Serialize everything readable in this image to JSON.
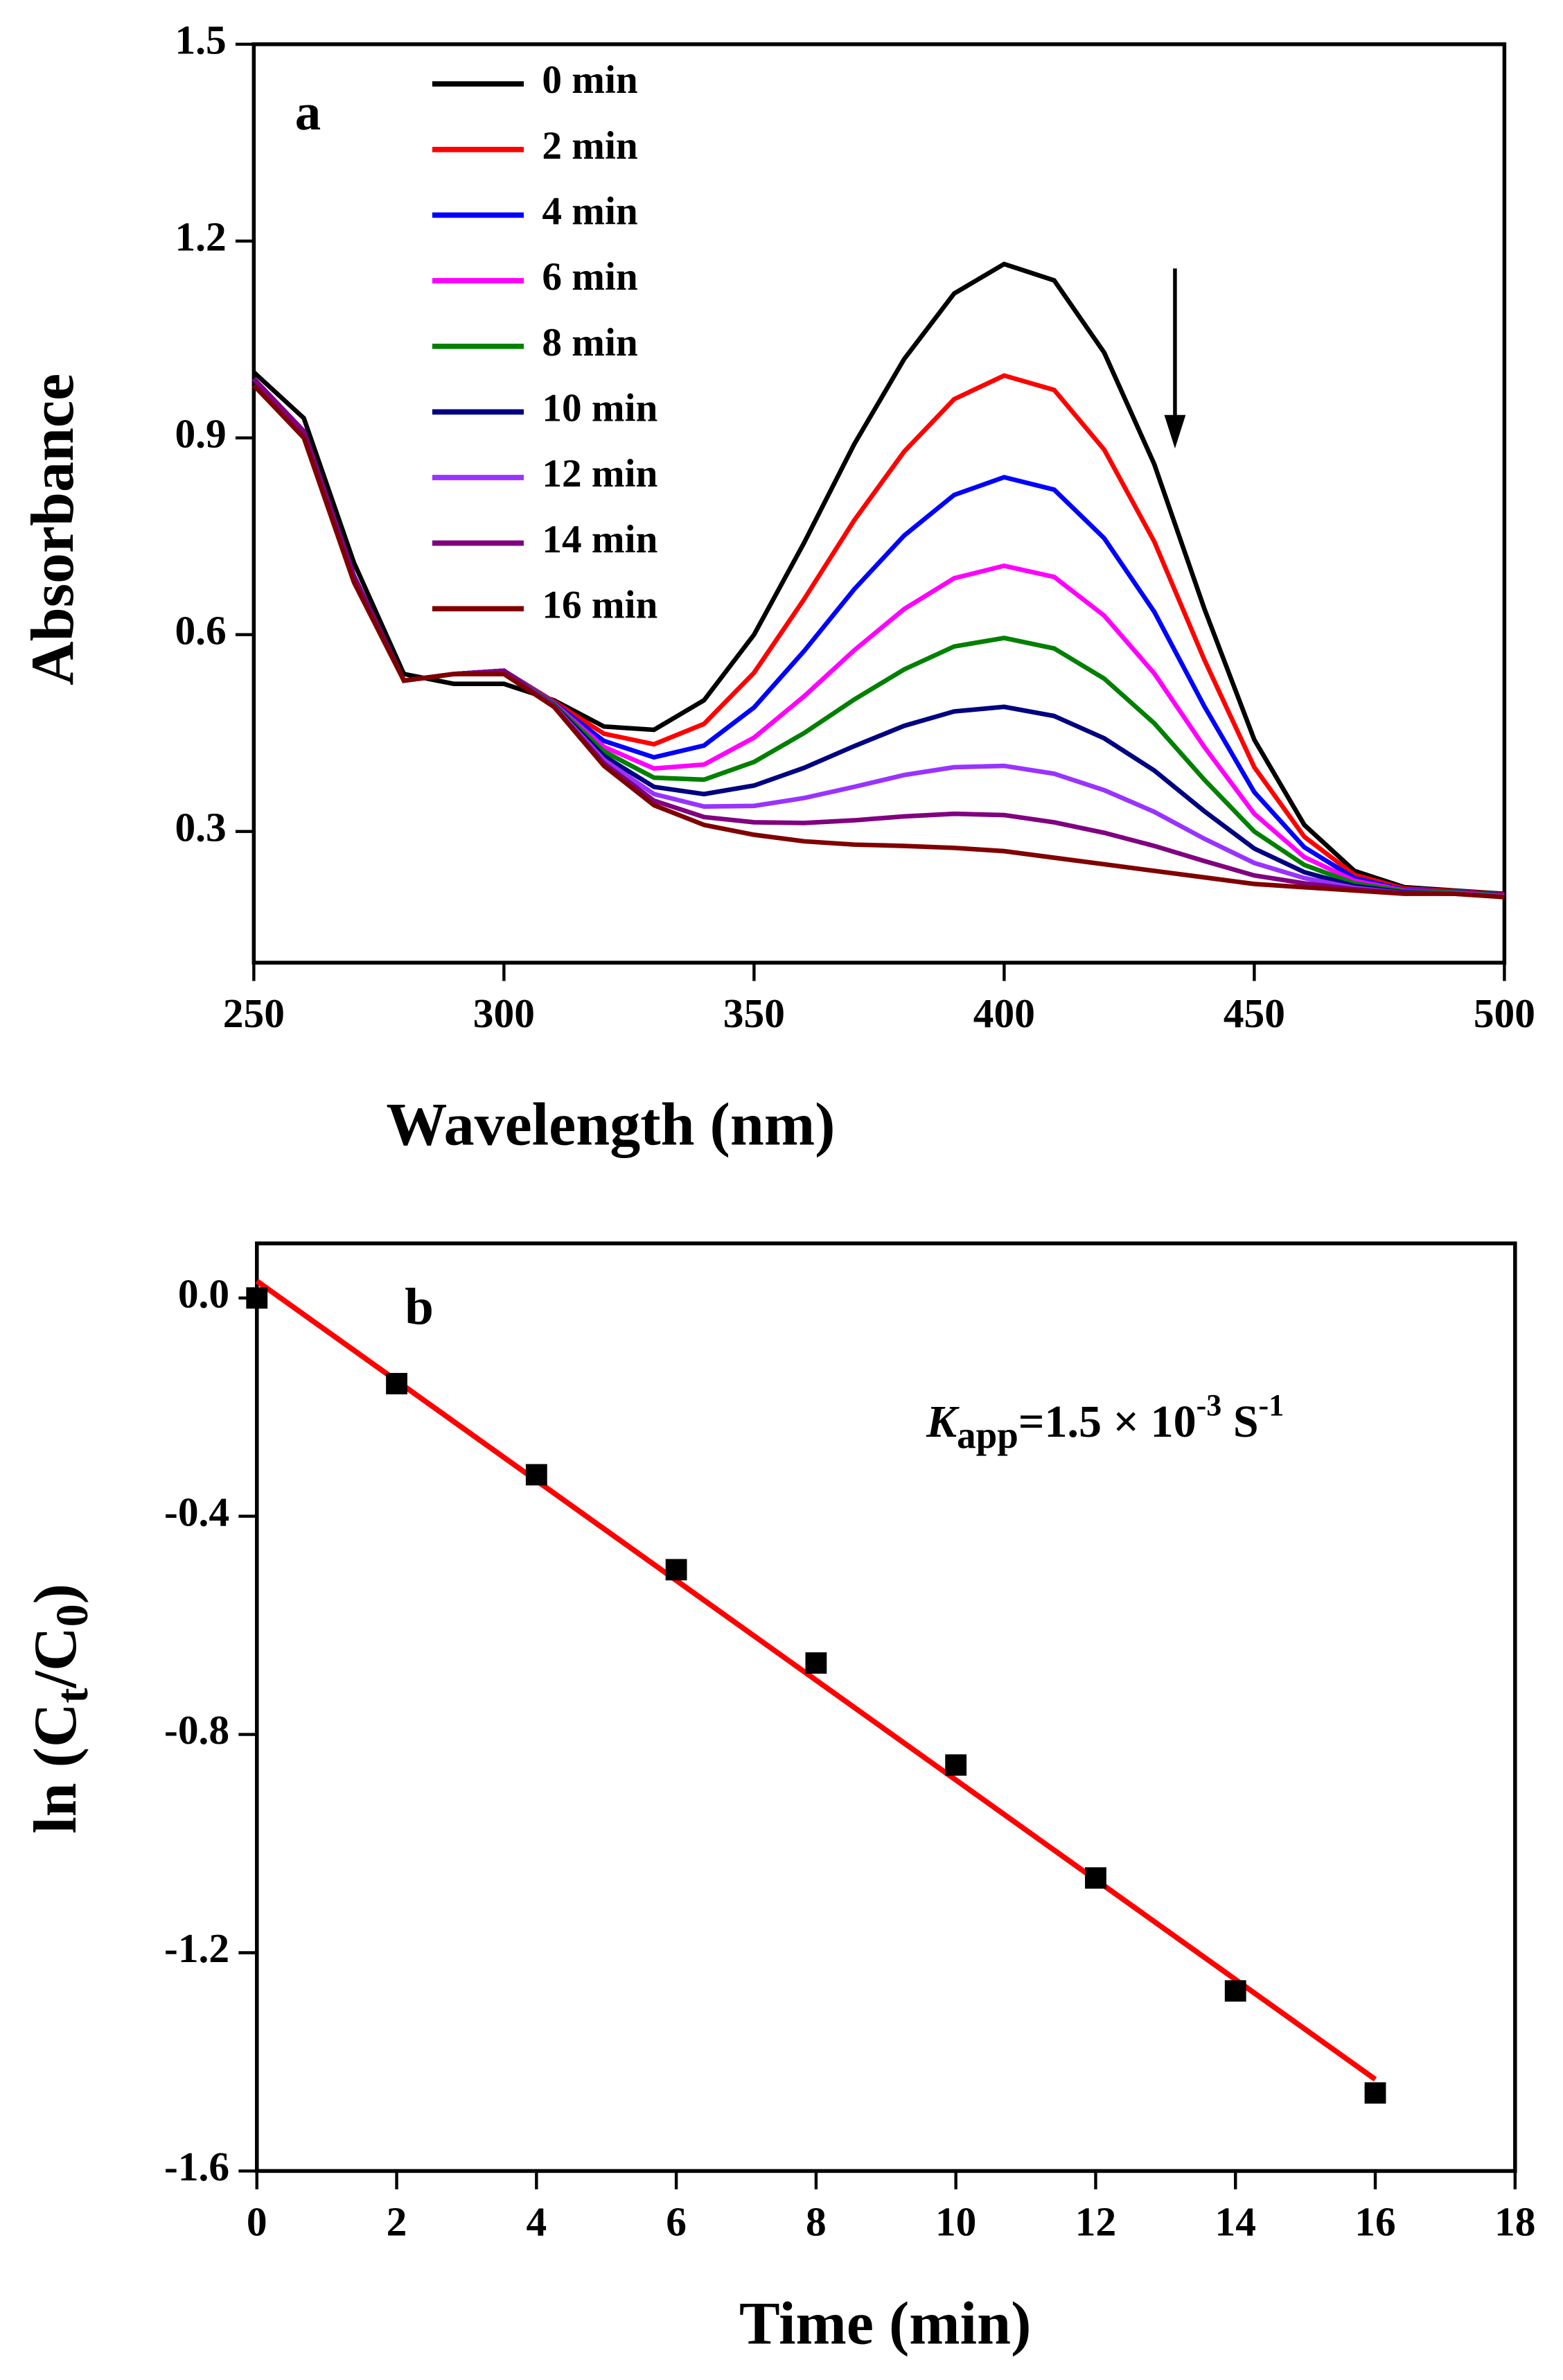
{
  "chart_data": [
    {
      "type": "line",
      "annotation": "a",
      "xlabel": "Wavelength (nm)",
      "ylabel": "Absorbance",
      "xlim": [
        250,
        500
      ],
      "xticks": [
        250,
        300,
        350,
        400,
        450,
        500
      ],
      "ylim": [
        0.1,
        1.5
      ],
      "yticks": [
        0.3,
        0.6,
        0.9,
        1.2,
        1.5
      ],
      "x": [
        250,
        260,
        270,
        280,
        290,
        300,
        310,
        320,
        330,
        340,
        350,
        360,
        370,
        380,
        390,
        400,
        410,
        420,
        430,
        440,
        450,
        460,
        470,
        480,
        490,
        500
      ],
      "series": [
        {
          "name": "0 min",
          "color": "#000000",
          "values": [
            1.0,
            0.93,
            0.71,
            0.54,
            0.525,
            0.525,
            0.5,
            0.46,
            0.455,
            0.5,
            0.6,
            0.74,
            0.89,
            1.02,
            1.12,
            1.165,
            1.14,
            1.03,
            0.86,
            0.64,
            0.44,
            0.31,
            0.24,
            0.215,
            0.21,
            0.205
          ]
        },
        {
          "name": "2 min",
          "color": "#ff0000",
          "values": [
            0.99,
            0.91,
            0.69,
            0.53,
            0.54,
            0.545,
            0.498,
            0.449,
            0.433,
            0.464,
            0.542,
            0.654,
            0.774,
            0.879,
            0.959,
            0.995,
            0.973,
            0.882,
            0.742,
            0.562,
            0.398,
            0.292,
            0.234,
            0.213,
            0.209,
            0.204
          ]
        },
        {
          "name": "4 min",
          "color": "#0000ff",
          "values": [
            0.99,
            0.91,
            0.69,
            0.53,
            0.54,
            0.545,
            0.496,
            0.438,
            0.413,
            0.431,
            0.489,
            0.575,
            0.669,
            0.751,
            0.813,
            0.84,
            0.821,
            0.747,
            0.635,
            0.491,
            0.36,
            0.276,
            0.229,
            0.211,
            0.208,
            0.203
          ]
        },
        {
          "name": "6 min",
          "color": "#ff00ff",
          "values": [
            0.99,
            0.91,
            0.69,
            0.53,
            0.54,
            0.545,
            0.495,
            0.429,
            0.396,
            0.402,
            0.443,
            0.506,
            0.576,
            0.639,
            0.686,
            0.705,
            0.688,
            0.629,
            0.541,
            0.429,
            0.327,
            0.261,
            0.225,
            0.21,
            0.207,
            0.202
          ]
        },
        {
          "name": "8 min",
          "color": "#008000",
          "values": [
            0.99,
            0.91,
            0.69,
            0.53,
            0.54,
            0.545,
            0.494,
            0.422,
            0.382,
            0.379,
            0.406,
            0.45,
            0.501,
            0.547,
            0.582,
            0.595,
            0.579,
            0.533,
            0.465,
            0.379,
            0.3,
            0.249,
            0.221,
            0.209,
            0.207,
            0.202
          ]
        },
        {
          "name": "10 min",
          "color": "#000080",
          "values": [
            0.99,
            0.91,
            0.69,
            0.53,
            0.54,
            0.545,
            0.492,
            0.415,
            0.368,
            0.357,
            0.37,
            0.397,
            0.43,
            0.461,
            0.483,
            0.49,
            0.476,
            0.442,
            0.393,
            0.331,
            0.274,
            0.238,
            0.217,
            0.207,
            0.206,
            0.201
          ]
        },
        {
          "name": "12 min",
          "color": "#9933ff",
          "values": [
            0.99,
            0.91,
            0.69,
            0.53,
            0.54,
            0.545,
            0.491,
            0.409,
            0.357,
            0.338,
            0.339,
            0.351,
            0.368,
            0.386,
            0.398,
            0.4,
            0.388,
            0.363,
            0.33,
            0.289,
            0.252,
            0.229,
            0.214,
            0.206,
            0.206,
            0.201
          ]
        },
        {
          "name": "14 min",
          "color": "#800080",
          "values": [
            0.99,
            0.91,
            0.69,
            0.53,
            0.54,
            0.545,
            0.49,
            0.404,
            0.347,
            0.322,
            0.314,
            0.313,
            0.317,
            0.323,
            0.327,
            0.325,
            0.314,
            0.298,
            0.278,
            0.255,
            0.233,
            0.221,
            0.212,
            0.206,
            0.205,
            0.2
          ]
        },
        {
          "name": "16 min",
          "color": "#800000",
          "values": [
            0.98,
            0.9,
            0.68,
            0.53,
            0.54,
            0.54,
            0.49,
            0.4,
            0.34,
            0.31,
            0.295,
            0.285,
            0.28,
            0.278,
            0.275,
            0.27,
            0.26,
            0.25,
            0.24,
            0.23,
            0.22,
            0.215,
            0.21,
            0.205,
            0.205,
            0.2
          ]
        }
      ]
    },
    {
      "type": "scatter",
      "annotation": "b",
      "xlabel": "Time (min)",
      "ylabel": {
        "main": "ln (C",
        "sub1": "t",
        "mid": "/C",
        "sub2": "0",
        "end": ")"
      },
      "rate": {
        "k": "K",
        "sub": "app",
        "text": "=1.5 × 10",
        "sup1": "-3",
        "unit": " S",
        "sup2": "-1"
      },
      "xlim": [
        0,
        18
      ],
      "xticks": [
        0,
        2,
        4,
        6,
        8,
        10,
        12,
        14,
        16,
        18
      ],
      "ylim": [
        -1.6,
        0.1
      ],
      "yticks": [
        {
          "value": 0,
          "label": "0.0"
        },
        -0.4,
        -0.8,
        -1.2,
        -1.6
      ],
      "x": [
        0,
        2,
        4,
        6,
        8,
        10,
        12,
        14,
        16
      ],
      "values": [
        0,
        -0.157,
        -0.324,
        -0.498,
        -0.669,
        -0.856,
        -1.063,
        -1.27,
        -1.457
      ],
      "color": "#000000",
      "fit": {
        "x": [
          0,
          16
        ],
        "values": [
          0.031,
          -1.432
        ],
        "color": "#ff0000"
      }
    }
  ]
}
